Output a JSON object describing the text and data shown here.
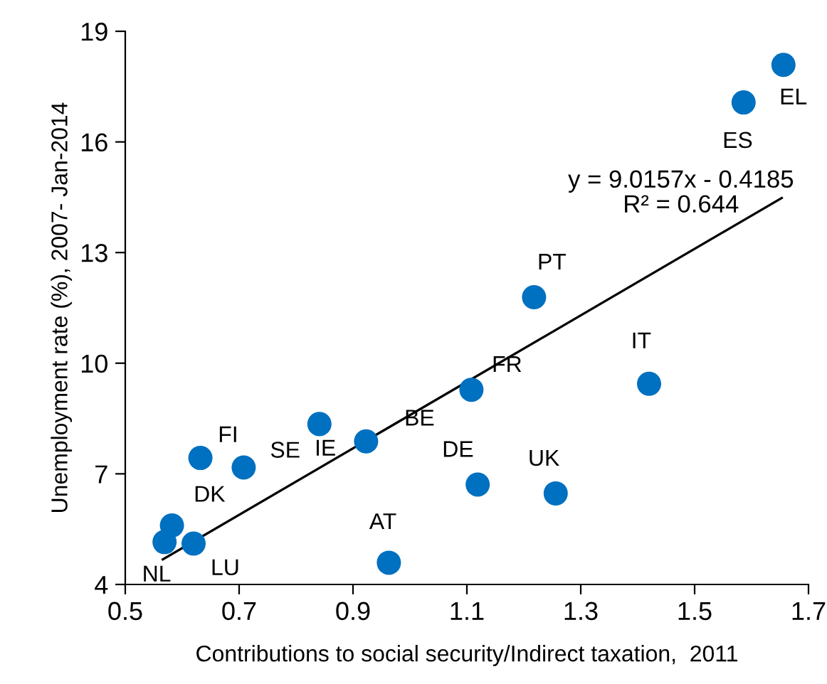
{
  "chart_data": {
    "type": "scatter",
    "xlabel": "Contributions to social security/Indirect taxation,  2011",
    "ylabel": "Unemployment rate (%), 2007- Jan-2014",
    "xlim": [
      0.5,
      1.7
    ],
    "xticks": [
      0.5,
      0.7,
      0.9,
      1.1,
      1.3,
      1.5,
      1.7
    ],
    "ylim": [
      4,
      19
    ],
    "yticks": [
      4,
      7,
      10,
      13,
      16,
      19
    ],
    "grid": false,
    "legend": false,
    "series": [
      {
        "marker": "circle",
        "color": "#0070c0",
        "x": [
          1.656,
          1.586,
          1.218,
          1.42,
          1.108,
          0.923,
          0.841,
          0.632,
          0.708,
          1.119,
          1.256,
          0.582,
          0.569,
          0.62,
          0.963
        ],
        "values": [
          18.09,
          17.07,
          11.79,
          9.44,
          9.28,
          7.88,
          8.35,
          7.43,
          7.17,
          6.71,
          6.47,
          5.6,
          5.15,
          5.11,
          4.59
        ]
      },
      {
        "type": "line",
        "color": "#000000",
        "line_style": "solid",
        "x": [
          0.566,
          1.653
        ],
        "values": [
          4.68,
          14.48
        ]
      }
    ],
    "annotations": [
      {
        "text": "EL",
        "x": 1.656,
        "y": 18.09
      },
      {
        "text": "ES",
        "x": 1.586,
        "y": 17.07
      },
      {
        "text": "PT",
        "x": 1.218,
        "y": 11.79
      },
      {
        "text": "IT",
        "x": 1.42,
        "y": 9.44
      },
      {
        "text": "FR",
        "x": 1.108,
        "y": 9.28
      },
      {
        "text": "BE",
        "x": 0.923,
        "y": 7.88
      },
      {
        "text": "IE",
        "x": 0.841,
        "y": 8.35
      },
      {
        "text": "FI",
        "x": 0.632,
        "y": 7.43
      },
      {
        "text": "SE",
        "x": 0.708,
        "y": 7.17
      },
      {
        "text": "DE",
        "x": 1.119,
        "y": 6.71
      },
      {
        "text": "UK",
        "x": 1.256,
        "y": 6.47
      },
      {
        "text": "DK",
        "x": 0.582,
        "y": 5.6
      },
      {
        "text": "NL",
        "x": 0.569,
        "y": 5.15
      },
      {
        "text": "LU",
        "x": 0.62,
        "y": 5.11
      },
      {
        "text": "AT",
        "x": 0.963,
        "y": 4.59
      },
      "y = 9.0157x - 0.4185\nR² = 0.644"
    ]
  }
}
